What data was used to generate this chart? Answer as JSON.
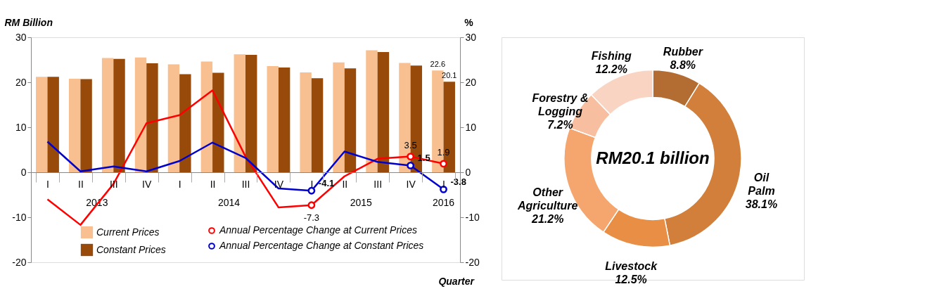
{
  "chart_data": [
    {
      "type": "bar",
      "ylabel": "RM Billion",
      "y2label": "%",
      "xlabel": "Quarter",
      "categories": [
        "I",
        "II",
        "III",
        "IV",
        "I",
        "II",
        "III",
        "IV",
        "I",
        "II",
        "III",
        "IV",
        "I"
      ],
      "series": [
        {
          "name": "Current Prices",
          "type": "bar",
          "color": "#f8c090",
          "values": [
            21.2,
            20.8,
            25.4,
            25.5,
            24.0,
            24.6,
            26.2,
            23.6,
            22.2,
            24.4,
            27.1,
            24.3,
            22.6
          ],
          "value_labels": [
            null,
            null,
            null,
            null,
            null,
            null,
            null,
            null,
            null,
            null,
            null,
            null,
            "22.6"
          ]
        },
        {
          "name": "Constant Prices",
          "type": "bar",
          "color": "#974a0a",
          "values": [
            21.2,
            20.7,
            25.2,
            24.2,
            21.8,
            22.1,
            26.1,
            23.3,
            20.9,
            23.1,
            26.7,
            23.7,
            20.1
          ],
          "value_labels": [
            null,
            null,
            null,
            null,
            null,
            null,
            null,
            null,
            null,
            null,
            null,
            null,
            "20.1"
          ]
        },
        {
          "name": "Annual Percentage Change at Current Prices",
          "type": "line",
          "axis": "y2",
          "color": "#ff0000",
          "values": [
            -6.0,
            -11.7,
            -2.6,
            10.9,
            12.7,
            18.2,
            3.5,
            -7.8,
            -7.3,
            -0.9,
            3.0,
            3.5,
            1.9
          ],
          "value_labels": [
            null,
            null,
            null,
            null,
            null,
            null,
            null,
            null,
            "-7.3",
            null,
            null,
            "3.5",
            "1.9"
          ]
        },
        {
          "name": "Annual Percentage Change at Constant Prices",
          "type": "line",
          "axis": "y2",
          "color": "#0000cc",
          "values": [
            6.8,
            0.2,
            1.3,
            0.2,
            2.5,
            6.6,
            3.2,
            -3.6,
            -4.1,
            4.6,
            2.3,
            1.5,
            -3.8
          ],
          "value_labels": [
            null,
            null,
            null,
            null,
            null,
            null,
            null,
            null,
            "-4.1",
            null,
            null,
            "1.5",
            "-3.8"
          ]
        }
      ],
      "ylim": [
        -20,
        30
      ],
      "yticks": [
        -20,
        -10,
        0,
        10,
        20,
        30
      ],
      "y2lim": [
        -20,
        30
      ],
      "y2ticks": [
        -20,
        -10,
        0,
        10,
        20,
        30
      ],
      "annotations": [
        "2013",
        "2014",
        "2015",
        "2016"
      ],
      "grid": false,
      "legend": "bottom"
    },
    {
      "type": "donut",
      "categories": [
        "Rubber",
        "Oil Palm",
        "Livestock",
        "Other Agriculture",
        "Forestry & Logging",
        "Fishing"
      ],
      "values": [
        8.8,
        38.1,
        12.5,
        21.2,
        7.2,
        12.2
      ],
      "colors": [
        "#b36d33",
        "#d17f3a",
        "#e98e45",
        "#f5a66e",
        "#f7bfa0",
        "#f9d4c3"
      ],
      "value_labels": [
        "8.8%",
        "38.1%",
        "12.5%",
        "21.2%",
        "7.2%",
        "12.2%"
      ],
      "annotations": [
        "RM20.1 billion"
      ]
    }
  ]
}
